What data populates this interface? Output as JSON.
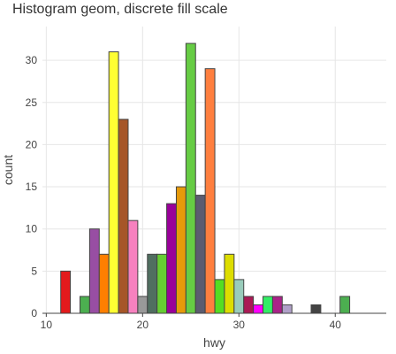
{
  "chart_data": {
    "type": "bar",
    "title": "Histogram geom, discrete fill scale",
    "xlabel": "hwy",
    "ylabel": "count",
    "xlim": [
      9.6,
      45.3
    ],
    "ylim": [
      0,
      34
    ],
    "x_ticks": [
      10,
      20,
      30,
      40
    ],
    "y_ticks": [
      0,
      5,
      10,
      15,
      20,
      25,
      30
    ],
    "grid": true,
    "legend": "none",
    "bin_width": 1,
    "bins": [
      {
        "x": 12,
        "count": 5,
        "color": "#e31a1c"
      },
      {
        "x": 14,
        "count": 2,
        "color": "#4caf50"
      },
      {
        "x": 15,
        "count": 10,
        "color": "#984ea3"
      },
      {
        "x": 16,
        "count": 7,
        "color": "#ff7f00"
      },
      {
        "x": 17,
        "count": 31,
        "color": "#ffff33"
      },
      {
        "x": 18,
        "count": 23,
        "color": "#a65628"
      },
      {
        "x": 19,
        "count": 11,
        "color": "#f781bf"
      },
      {
        "x": 20,
        "count": 2,
        "color": "#999999"
      },
      {
        "x": 21,
        "count": 7,
        "color": "#506e60"
      },
      {
        "x": 22,
        "count": 7,
        "color": "#66cc33"
      },
      {
        "x": 23,
        "count": 13,
        "color": "#990099"
      },
      {
        "x": 24,
        "count": 15,
        "color": "#e69a0a"
      },
      {
        "x": 25,
        "count": 32,
        "color": "#66cc44"
      },
      {
        "x": 26,
        "count": 14,
        "color": "#5c5c70"
      },
      {
        "x": 27,
        "count": 29,
        "color": "#ff7f3f"
      },
      {
        "x": 28,
        "count": 4,
        "color": "#55dd22"
      },
      {
        "x": 29,
        "count": 7,
        "color": "#dddd00"
      },
      {
        "x": 30,
        "count": 4,
        "color": "#99ccbb"
      },
      {
        "x": 31,
        "count": 2,
        "color": "#aa1a55"
      },
      {
        "x": 32,
        "count": 1,
        "color": "#ff00ff"
      },
      {
        "x": 33,
        "count": 2,
        "color": "#33ee66"
      },
      {
        "x": 34,
        "count": 2,
        "color": "#aa2288"
      },
      {
        "x": 35,
        "count": 1,
        "color": "#b0a0c8"
      },
      {
        "x": 38,
        "count": 1,
        "color": "#444444"
      },
      {
        "x": 41,
        "count": 2,
        "color": "#4caf50"
      }
    ]
  }
}
